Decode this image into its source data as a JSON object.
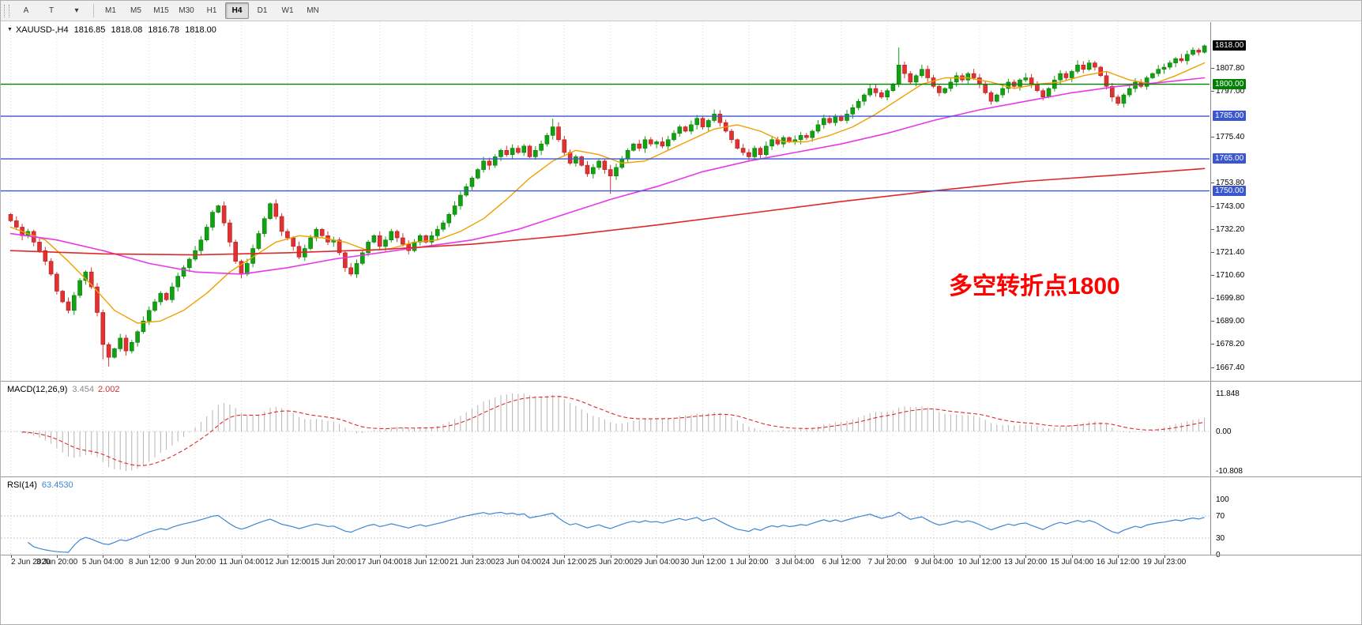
{
  "toolbar": {
    "tools": [
      {
        "name": "text-tool-button",
        "label": "A"
      },
      {
        "name": "trendline-tool-button",
        "label": "T"
      },
      {
        "name": "drawing-tools-dropdown",
        "label": "▾"
      }
    ],
    "timeframes": [
      "M1",
      "M5",
      "M15",
      "M30",
      "H1",
      "H4",
      "D1",
      "W1",
      "MN"
    ],
    "active_timeframe": "H4"
  },
  "chart": {
    "title": {
      "expander": "▼",
      "symbol": "XAUUSD-,H4",
      "open": "1816.85",
      "high": "1818.08",
      "low": "1816.78",
      "close": "1818.00"
    },
    "annotation": {
      "text": "多空转折点1800",
      "color": "#ff0000"
    },
    "colors": {
      "bull": "#11a211",
      "bear": "#e03232",
      "bull_edge": "#0b7a0b",
      "bear_edge": "#b01f1f"
    },
    "price_axis": {
      "labels": [
        {
          "text": "1807.80",
          "value": 1807.8
        },
        {
          "text": "1797.00",
          "value": 1797.0
        },
        {
          "text": "1775.40",
          "value": 1775.4
        },
        {
          "text": "1753.80",
          "value": 1753.8
        },
        {
          "text": "1743.00",
          "value": 1743.0
        },
        {
          "text": "1732.20",
          "value": 1732.2
        },
        {
          "text": "1721.40",
          "value": 1721.4
        },
        {
          "text": "1710.60",
          "value": 1710.6
        },
        {
          "text": "1699.80",
          "value": 1699.8
        },
        {
          "text": "1689.00",
          "value": 1689.0
        },
        {
          "text": "1678.20",
          "value": 1678.2
        },
        {
          "text": "1667.40",
          "value": 1667.4
        }
      ],
      "highlighted": [
        {
          "text": "1818.00",
          "value": 1818.0,
          "bg": "#000000",
          "name": "current-price-flag"
        },
        {
          "text": "1800.00",
          "value": 1800.0,
          "bg": "#008000",
          "name": "level-flag-1800"
        },
        {
          "text": "1785.00",
          "value": 1785.0,
          "bg": "#3a57d0",
          "name": "level-flag-1785"
        },
        {
          "text": "1765.00",
          "value": 1765.0,
          "bg": "#3a57d0",
          "name": "level-flag-1765"
        },
        {
          "text": "1750.00",
          "value": 1750.0,
          "bg": "#3a57d0",
          "name": "level-flag-1750"
        }
      ]
    },
    "h_lines": [
      {
        "value": 1800.0,
        "color": "#008000"
      },
      {
        "value": 1785.0,
        "color": "#3a57d0"
      },
      {
        "value": 1765.0,
        "color": "#3a57d0"
      },
      {
        "value": 1750.0,
        "color": "#3a57d0"
      }
    ],
    "time_axis": [
      "2 Jun 2020",
      "3 Jun 20:00",
      "5 Jun 04:00",
      "8 Jun 12:00",
      "9 Jun 20:00",
      "11 Jun 04:00",
      "12 Jun 12:00",
      "15 Jun 20:00",
      "17 Jun 04:00",
      "18 Jun 12:00",
      "21 Jun 23:00",
      "23 Jun 04:00",
      "24 Jun 12:00",
      "25 Jun 20:00",
      "29 Jun 04:00",
      "30 Jun 12:00",
      "1 Jul 20:00",
      "3 Jul 04:00",
      "6 Jul 12:00",
      "7 Jul 20:00",
      "9 Jul 04:00",
      "10 Jul 12:00",
      "13 Jul 20:00",
      "15 Jul 04:00",
      "16 Jul 12:00",
      "19 Jul 23:00"
    ]
  },
  "macd": {
    "label": "MACD(12,26,9)",
    "value_main": "3.454",
    "value_signal": "2.002",
    "axis": {
      "top": "11.848",
      "zero": "0.00",
      "bottom": "-10.808"
    },
    "params": {
      "fast": 12,
      "slow": 26,
      "signal": 9
    },
    "colors": {
      "hist": "#b4b4b4",
      "signal": "#e02828"
    }
  },
  "rsi": {
    "label": "RSI(14)",
    "value": "63.4530",
    "period": 14,
    "levels": [
      70,
      30
    ],
    "axis": [
      {
        "text": "100",
        "value": 100
      },
      {
        "text": "70",
        "value": 70
      },
      {
        "text": "30",
        "value": 30
      },
      {
        "text": "0",
        "value": 0
      }
    ],
    "color": "#3c86d2"
  },
  "chart_data": {
    "type": "candlestick",
    "symbol": "XAUUSD",
    "timeframe": "H4",
    "last_price": 1818.0,
    "ylim": [
      1661,
      1830
    ],
    "open_first": 1739,
    "closes": [
      1736,
      1733,
      1729,
      1731,
      1726,
      1722,
      1717,
      1711,
      1703,
      1698,
      1694,
      1701,
      1708,
      1712,
      1705,
      1693,
      1678,
      1672,
      1676,
      1681,
      1675,
      1679,
      1684,
      1689,
      1694,
      1698,
      1702,
      1699,
      1705,
      1710,
      1714,
      1718,
      1722,
      1727,
      1733,
      1740,
      1743,
      1735,
      1726,
      1717,
      1711,
      1716,
      1723,
      1730,
      1737,
      1744,
      1738,
      1731,
      1728,
      1724,
      1719,
      1723,
      1728,
      1732,
      1729,
      1726,
      1727,
      1721,
      1714,
      1711,
      1716,
      1721,
      1726,
      1729,
      1724,
      1727,
      1731,
      1728,
      1725,
      1722,
      1726,
      1729,
      1726,
      1729,
      1732,
      1735,
      1739,
      1743,
      1748,
      1752,
      1756,
      1760,
      1764,
      1762,
      1766,
      1769,
      1767,
      1770,
      1768,
      1771,
      1766,
      1769,
      1772,
      1776,
      1780,
      1774,
      1768,
      1763,
      1766,
      1762,
      1758,
      1761,
      1764,
      1760,
      1757,
      1761,
      1765,
      1769,
      1772,
      1770,
      1774,
      1772,
      1773,
      1771,
      1774,
      1777,
      1780,
      1778,
      1781,
      1784,
      1780,
      1783,
      1786,
      1782,
      1778,
      1774,
      1770,
      1768,
      1766,
      1770,
      1767,
      1771,
      1774,
      1772,
      1775,
      1773,
      1774,
      1776,
      1775,
      1778,
      1781,
      1784,
      1782,
      1785,
      1783,
      1786,
      1789,
      1792,
      1795,
      1798,
      1796,
      1794,
      1797,
      1800,
      1809,
      1805,
      1801,
      1804,
      1807,
      1803,
      1799,
      1796,
      1798,
      1801,
      1804,
      1802,
      1805,
      1803,
      1800,
      1796,
      1792,
      1795,
      1798,
      1801,
      1799,
      1802,
      1803,
      1800,
      1797,
      1794,
      1798,
      1802,
      1805,
      1803,
      1806,
      1809,
      1807,
      1810,
      1808,
      1804,
      1799,
      1794,
      1791,
      1795,
      1798,
      1801,
      1799,
      1803,
      1805,
      1807,
      1808,
      1810,
      1812,
      1811,
      1814,
      1816,
      1815,
      1818
    ],
    "wick_overrides": {
      "16": {
        "low": 1671.0
      },
      "17": {
        "low": 1667.7
      },
      "94": {
        "high": 1783.8
      },
      "104": {
        "low": 1748.6
      },
      "154": {
        "high": 1817.2
      },
      "207": {
        "high": 1818.6
      }
    },
    "ma_lines": [
      {
        "name": "ma-fast-orange",
        "color": "#f0a000",
        "width": 1.4,
        "anchors": [
          [
            0,
            1733
          ],
          [
            6,
            1727
          ],
          [
            10,
            1717
          ],
          [
            14,
            1706
          ],
          [
            18,
            1694
          ],
          [
            22,
            1688
          ],
          [
            26,
            1689
          ],
          [
            30,
            1694
          ],
          [
            34,
            1702
          ],
          [
            38,
            1712
          ],
          [
            42,
            1719
          ],
          [
            46,
            1726
          ],
          [
            50,
            1729
          ],
          [
            54,
            1728
          ],
          [
            58,
            1726
          ],
          [
            62,
            1722
          ],
          [
            66,
            1723
          ],
          [
            70,
            1726
          ],
          [
            74,
            1727
          ],
          [
            78,
            1731
          ],
          [
            82,
            1737
          ],
          [
            86,
            1746
          ],
          [
            90,
            1756
          ],
          [
            94,
            1764
          ],
          [
            98,
            1769
          ],
          [
            102,
            1767
          ],
          [
            106,
            1763
          ],
          [
            110,
            1764
          ],
          [
            114,
            1769
          ],
          [
            118,
            1774
          ],
          [
            122,
            1779
          ],
          [
            126,
            1781
          ],
          [
            130,
            1778
          ],
          [
            134,
            1773
          ],
          [
            138,
            1773
          ],
          [
            142,
            1776
          ],
          [
            146,
            1780
          ],
          [
            150,
            1786
          ],
          [
            154,
            1793
          ],
          [
            158,
            1800
          ],
          [
            162,
            1803
          ],
          [
            166,
            1803
          ],
          [
            170,
            1801
          ],
          [
            174,
            1798
          ],
          [
            178,
            1800
          ],
          [
            182,
            1801
          ],
          [
            186,
            1804
          ],
          [
            190,
            1806
          ],
          [
            194,
            1802
          ],
          [
            198,
            1800
          ],
          [
            202,
            1804
          ],
          [
            207,
            1810
          ]
        ]
      },
      {
        "name": "ma-mid-magenta",
        "color": "#e838e8",
        "width": 1.6,
        "anchors": [
          [
            0,
            1730
          ],
          [
            8,
            1727
          ],
          [
            16,
            1722
          ],
          [
            24,
            1716
          ],
          [
            32,
            1712
          ],
          [
            40,
            1711
          ],
          [
            48,
            1714
          ],
          [
            56,
            1718
          ],
          [
            64,
            1721
          ],
          [
            72,
            1724
          ],
          [
            80,
            1727
          ],
          [
            88,
            1732
          ],
          [
            96,
            1739
          ],
          [
            104,
            1746
          ],
          [
            112,
            1752
          ],
          [
            120,
            1759
          ],
          [
            128,
            1764
          ],
          [
            136,
            1768
          ],
          [
            144,
            1772
          ],
          [
            152,
            1777
          ],
          [
            160,
            1783
          ],
          [
            168,
            1788
          ],
          [
            176,
            1792
          ],
          [
            184,
            1796
          ],
          [
            192,
            1799
          ],
          [
            200,
            1801
          ],
          [
            207,
            1803
          ]
        ]
      },
      {
        "name": "ma-slow-red",
        "color": "#e02828",
        "width": 1.6,
        "anchors": [
          [
            0,
            1722
          ],
          [
            16,
            1720.5
          ],
          [
            32,
            1720
          ],
          [
            48,
            1721
          ],
          [
            64,
            1722.5
          ],
          [
            80,
            1725
          ],
          [
            96,
            1729
          ],
          [
            112,
            1734
          ],
          [
            128,
            1739.5
          ],
          [
            144,
            1745
          ],
          [
            160,
            1750
          ],
          [
            176,
            1754.5
          ],
          [
            192,
            1757.5
          ],
          [
            207,
            1760.5
          ]
        ]
      }
    ]
  }
}
